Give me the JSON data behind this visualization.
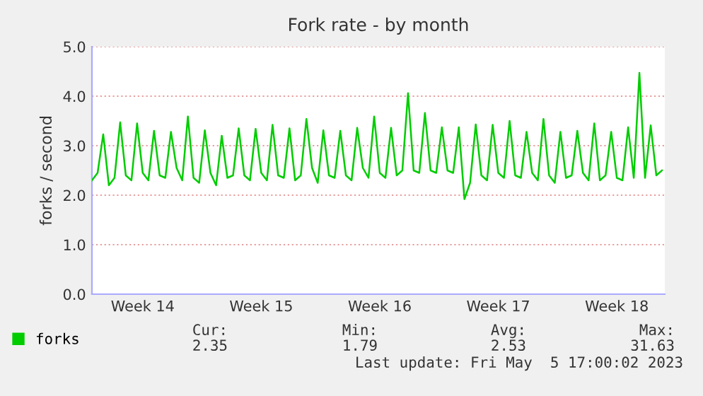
{
  "chart_data": {
    "type": "line",
    "title": "Fork rate - by month",
    "ylabel": "forks / second",
    "categories": [
      null,
      null,
      null,
      null,
      null,
      null,
      null,
      null,
      null,
      "Week 14",
      null,
      null,
      null,
      null,
      null,
      null,
      null,
      null,
      null,
      null,
      null,
      null,
      null,
      null,
      null,
      null,
      null,
      null,
      null,
      null,
      "Week 15",
      null,
      null,
      null,
      null,
      null,
      null,
      null,
      null,
      null,
      null,
      null,
      null,
      null,
      null,
      null,
      null,
      null,
      null,
      null,
      null,
      "Week 16",
      null,
      null,
      null,
      null,
      null,
      null,
      null,
      null,
      null,
      null,
      null,
      null,
      null,
      null,
      null,
      null,
      null,
      null,
      null,
      null,
      "Week 17",
      null,
      null,
      null,
      null,
      null,
      null,
      null,
      null,
      null,
      null,
      null,
      null,
      null,
      null,
      null,
      null,
      null,
      null,
      null,
      null,
      "Week 18",
      null,
      null,
      null,
      null,
      null,
      null,
      null,
      null
    ],
    "series": [
      {
        "name": "forks",
        "color": "#00cc00",
        "values": [
          2.3,
          2.45,
          3.23,
          2.2,
          2.35,
          3.47,
          2.4,
          2.3,
          3.45,
          2.45,
          2.3,
          3.3,
          2.4,
          2.35,
          3.28,
          2.55,
          2.3,
          3.59,
          2.35,
          2.25,
          3.31,
          2.45,
          2.2,
          3.2,
          2.35,
          2.4,
          3.35,
          2.4,
          2.3,
          3.34,
          2.45,
          2.3,
          3.42,
          2.4,
          2.35,
          3.35,
          2.3,
          2.4,
          3.54,
          2.55,
          2.25,
          3.31,
          2.4,
          2.35,
          3.3,
          2.4,
          2.3,
          3.36,
          2.55,
          2.35,
          3.59,
          2.45,
          2.35,
          3.36,
          2.4,
          2.5,
          4.06,
          2.5,
          2.45,
          3.66,
          2.5,
          2.45,
          3.37,
          2.5,
          2.45,
          3.37,
          1.92,
          2.25,
          3.43,
          2.4,
          2.3,
          3.42,
          2.45,
          2.35,
          3.5,
          2.4,
          2.35,
          3.28,
          2.45,
          2.3,
          3.54,
          2.4,
          2.25,
          3.28,
          2.35,
          2.4,
          3.3,
          2.45,
          2.3,
          3.45,
          2.3,
          2.4,
          3.28,
          2.35,
          2.3,
          3.37,
          2.35,
          4.47,
          2.35,
          3.41,
          2.4,
          2.5
        ]
      }
    ],
    "ylim": [
      0,
      5
    ],
    "yticks": [
      {
        "value": 0,
        "label": "0.0"
      },
      {
        "value": 1,
        "label": "1.0"
      },
      {
        "value": 2,
        "label": "2.0"
      },
      {
        "value": 3,
        "label": "3.0"
      },
      {
        "value": 4,
        "label": "4.0"
      },
      {
        "value": 5,
        "label": "5.0"
      }
    ],
    "grid": "y",
    "legend": "bottom left",
    "marker": "none",
    "line_style": "solid",
    "annotations": [
      "Cur:",
      "Min:",
      "Avg:",
      "Max:",
      "2.35",
      "1.79",
      "2.53",
      "31.63",
      "Last update: Fri May  5 17:00:02 2023"
    ]
  }
}
